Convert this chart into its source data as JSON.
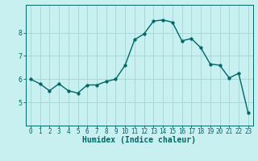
{
  "x": [
    0,
    1,
    2,
    3,
    4,
    5,
    6,
    7,
    8,
    9,
    10,
    11,
    12,
    13,
    14,
    15,
    16,
    17,
    18,
    19,
    20,
    21,
    22,
    23
  ],
  "y": [
    6.0,
    5.8,
    5.5,
    5.8,
    5.5,
    5.4,
    5.75,
    5.75,
    5.9,
    6.0,
    6.6,
    7.7,
    7.95,
    8.5,
    8.55,
    8.45,
    7.65,
    7.75,
    7.35,
    6.65,
    6.6,
    6.05,
    6.25,
    4.55
  ],
  "line_color": "#006666",
  "marker_color": "#006666",
  "bg_color": "#c8f0f0",
  "grid_color": "#a8d8d8",
  "xlabel": "Humidex (Indice chaleur)",
  "xlim": [
    -0.5,
    23.5
  ],
  "ylim": [
    4.0,
    9.2
  ],
  "yticks": [
    5,
    6,
    7,
    8
  ],
  "xticks": [
    0,
    1,
    2,
    3,
    4,
    5,
    6,
    7,
    8,
    9,
    10,
    11,
    12,
    13,
    14,
    15,
    16,
    17,
    18,
    19,
    20,
    21,
    22,
    23
  ],
  "linewidth": 1.0,
  "markersize": 2.5,
  "tick_fontsize": 5.5,
  "xlabel_fontsize": 7.0,
  "ylabel_fontsize": 7.0
}
